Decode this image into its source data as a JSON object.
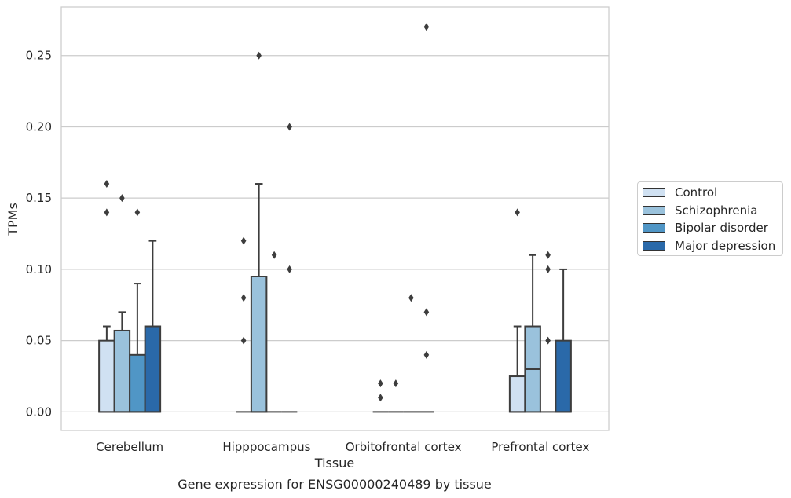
{
  "chart_data": {
    "type": "boxplot",
    "title": "",
    "caption": "Gene expression for ENSG00000240489 by tissue",
    "xlabel": "Tissue",
    "ylabel": "TPMs",
    "ylim": [
      -0.013,
      0.284
    ],
    "yticks": [
      "0.00",
      "0.05",
      "0.10",
      "0.15",
      "0.20",
      "0.25"
    ],
    "grid": "horizontal",
    "legend_placement": "right",
    "categories": [
      "Cerebellum",
      "Hipppocampus",
      "Orbitofrontal cortex",
      "Prefrontal cortex"
    ],
    "series": [
      {
        "name": "Control",
        "color": "#d0e1f2",
        "boxes": [
          {
            "q1": 0,
            "median": 0,
            "q3": 0.05,
            "whisker_low": 0,
            "whisker_high": 0.06,
            "outliers": [
              0.14,
              0.16
            ]
          },
          {
            "q1": 0,
            "median": 0,
            "q3": 0,
            "whisker_low": 0,
            "whisker_high": 0,
            "outliers": [
              0.05,
              0.08,
              0.12
            ]
          },
          {
            "q1": 0,
            "median": 0,
            "q3": 0,
            "whisker_low": 0,
            "whisker_high": 0,
            "outliers": [
              0.01,
              0.02
            ]
          },
          {
            "q1": 0,
            "median": 0,
            "q3": 0.025,
            "whisker_low": 0,
            "whisker_high": 0.06,
            "outliers": [
              0.14
            ]
          }
        ]
      },
      {
        "name": "Schizophrenia",
        "color": "#9ac2dc",
        "boxes": [
          {
            "q1": 0,
            "median": 0,
            "q3": 0.057,
            "whisker_low": 0,
            "whisker_high": 0.07,
            "outliers": [
              0.15
            ]
          },
          {
            "q1": 0,
            "median": 0,
            "q3": 0.095,
            "whisker_low": 0,
            "whisker_high": 0.16,
            "outliers": [
              0.25
            ]
          },
          {
            "q1": 0,
            "median": 0,
            "q3": 0,
            "whisker_low": 0,
            "whisker_high": 0,
            "outliers": [
              0.02
            ]
          },
          {
            "q1": 0,
            "median": 0.03,
            "q3": 0.06,
            "whisker_low": 0,
            "whisker_high": 0.11,
            "outliers": []
          }
        ]
      },
      {
        "name": "Bipolar disorder",
        "color": "#5096c6",
        "boxes": [
          {
            "q1": 0,
            "median": 0,
            "q3": 0.04,
            "whisker_low": 0,
            "whisker_high": 0.09,
            "outliers": [
              0.14
            ]
          },
          {
            "q1": 0,
            "median": 0,
            "q3": 0,
            "whisker_low": 0,
            "whisker_high": 0,
            "outliers": [
              0.11
            ]
          },
          {
            "q1": 0,
            "median": 0,
            "q3": 0,
            "whisker_low": 0,
            "whisker_high": 0,
            "outliers": [
              0.08
            ]
          },
          {
            "q1": 0,
            "median": 0,
            "q3": 0,
            "whisker_low": 0,
            "whisker_high": 0,
            "outliers": [
              0.05,
              0.1,
              0.11
            ]
          }
        ]
      },
      {
        "name": "Major depression",
        "color": "#2a69a9",
        "boxes": [
          {
            "q1": 0,
            "median": 0,
            "q3": 0.06,
            "whisker_low": 0,
            "whisker_high": 0.12,
            "outliers": []
          },
          {
            "q1": 0,
            "median": 0,
            "q3": 0,
            "whisker_low": 0,
            "whisker_high": 0,
            "outliers": [
              0.1,
              0.2
            ]
          },
          {
            "q1": 0,
            "median": 0,
            "q3": 0,
            "whisker_low": 0,
            "whisker_high": 0,
            "outliers": [
              0.04,
              0.07,
              0.27
            ]
          },
          {
            "q1": 0,
            "median": 0,
            "q3": 0.05,
            "whisker_low": 0,
            "whisker_high": 0.1,
            "outliers": []
          }
        ]
      }
    ]
  }
}
